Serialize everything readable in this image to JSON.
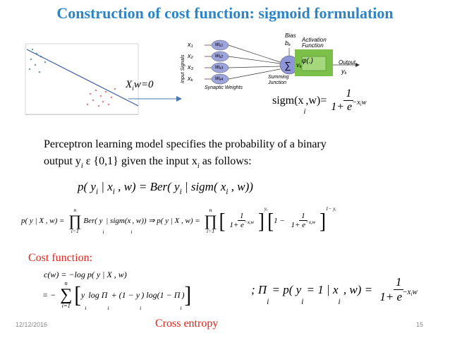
{
  "title": "Construction of cost function: sigmoid formulation",
  "boundary_label": [
    "X",
    {
      "sub": "i"
    },
    "w=0"
  ],
  "perceptron": {
    "labels": [
      [
        "x",
        {
          "sub": "1"
        }
      ],
      [
        "x",
        {
          "sub": "2"
        }
      ],
      [
        "x",
        {
          "sub": "3"
        }
      ],
      [
        "x",
        {
          "sub": "k"
        }
      ],
      [
        "w",
        {
          "sub": "k1"
        }
      ],
      [
        "w",
        {
          "sub": "k2"
        }
      ],
      [
        "w",
        {
          "sub": "k3"
        }
      ],
      [
        "w",
        {
          "sub": "k4"
        }
      ],
      [
        "Input Signals"
      ],
      [
        "Bias"
      ],
      [
        "b",
        {
          "sub": "k"
        }
      ],
      [
        "∑"
      ],
      [
        "Summing"
      ],
      [
        "Junction"
      ],
      [
        "Synaptic Weights"
      ],
      [
        "v",
        {
          "sub": "k"
        }
      ],
      [
        "Activation"
      ],
      [
        "Function"
      ],
      [
        "φ(.)"
      ],
      [
        "Output"
      ],
      [
        "y",
        {
          "sub": "k"
        }
      ]
    ]
  },
  "sigmoid": [
    "sigm(x",
    {
      "sub": "i"
    },
    ",w)=",
    {
      "frac": [
        [
          "1"
        ],
        [
          "1+ e",
          {
            "sup": [
              "−x",
              {
                "sub": "i"
              },
              "w"
            ]
          }
        ]
      ]
    }
  ],
  "paragraph": [
    [
      "Perceptron learning model specifies the probability of a binary"
    ],
    [
      "output y",
      {
        "sub": "i"
      },
      " ε {0,1} given the input x",
      {
        "sub": "i"
      },
      " as follows:"
    ]
  ],
  "likelihood": [
    "p( y",
    {
      "sub": "i"
    },
    " | x",
    {
      "sub": "i"
    },
    " , w) = Ber( y",
    {
      "sub": "i"
    },
    " | sigm( x",
    {
      "sub": "i"
    },
    " , w))"
  ],
  "joint": [
    "p( y | X , w) = ",
    {
      "op": "∏",
      "over": "n",
      "under": "i=1"
    },
    "Ber( y",
    {
      "sub": "i"
    },
    " | sigm(x",
    {
      "sub": "i"
    },
    ", w)) ⇒ p( y | X , w) = ",
    {
      "op": "∏",
      "over": "n",
      "under": "i=1"
    },
    {
      "big": "["
    },
    {
      "frac": [
        [
          "1"
        ],
        [
          "1+ e",
          {
            "sup": [
              "−x",
              {
                "sub": "i"
              },
              "w"
            ]
          }
        ]
      ]
    },
    {
      "big": "]"
    },
    {
      "sup": [
        "y",
        {
          "sub": "i"
        }
      ]
    },
    {
      "big": "["
    },
    "1 − ",
    {
      "frac": [
        [
          "1"
        ],
        [
          "1+ e",
          {
            "sup": [
              "−x",
              {
                "sub": "i"
              },
              "w"
            ]
          }
        ]
      ]
    },
    {
      "big": "]"
    },
    {
      "sup": [
        "1− y",
        {
          "sub": "i"
        }
      ]
    }
  ],
  "cost_heading": "Cost function:",
  "cost_line1": [
    "c(w) = −log p( y | X , w)"
  ],
  "cost_line2": [
    "= − ",
    {
      "op": "∑",
      "over": "n",
      "under": "i=1"
    },
    {
      "big": "["
    },
    "y",
    {
      "sub": "i"
    },
    " log Π",
    {
      "sub": "i"
    },
    " + (1 − y",
    {
      "sub": "i"
    },
    ") log(1 − Π",
    {
      "sub": "i"
    },
    ")",
    {
      "big": "]"
    }
  ],
  "pi_def": [
    "; Π",
    {
      "sub": "i"
    },
    " = p( y",
    {
      "sub": "i"
    },
    " = 1 | x",
    {
      "sub": "i"
    },
    " , w) = ",
    {
      "frac": [
        [
          "1"
        ],
        [
          "1+ e",
          {
            "sup": [
              "−x",
              {
                "sub": "i"
              },
              "w"
            ]
          }
        ]
      ]
    }
  ],
  "cross_entropy": "Cross entropy",
  "date": "12/12/2016",
  "page_number": "15"
}
